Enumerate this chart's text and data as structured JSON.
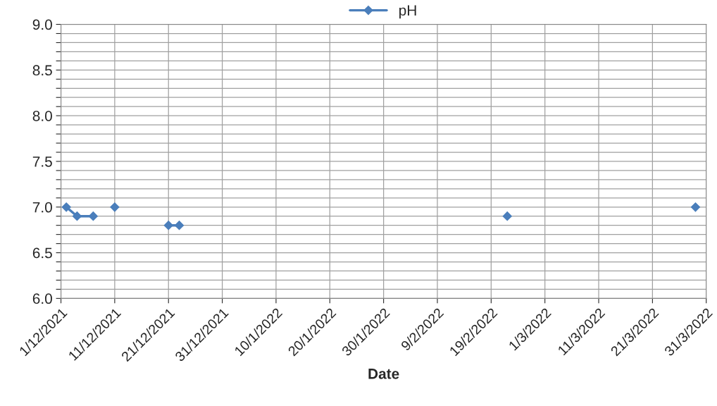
{
  "chart_data": {
    "type": "line",
    "xlabel": "Date",
    "x": [
      "2021-12-02",
      "2021-12-04",
      "2021-12-07",
      "2021-12-09",
      "2021-12-11",
      "2021-12-16",
      "2021-12-21",
      "2021-12-23",
      "2022-01-20",
      "2022-02-22",
      "2022-03-10",
      "2022-03-29"
    ],
    "series": [
      {
        "name": "pH",
        "color": "#4a7ebb",
        "values": [
          7.0,
          6.9,
          6.9,
          null,
          7.0,
          null,
          6.8,
          6.8,
          null,
          6.9,
          null,
          7.0
        ]
      }
    ],
    "xlim": [
      "2021-12-01",
      "2022-03-31"
    ],
    "xticks": [
      {
        "value": "2021-12-01",
        "label": "1/12/2021"
      },
      {
        "value": "2021-12-11",
        "label": "11/12/2021"
      },
      {
        "value": "2021-12-21",
        "label": "21/12/2021"
      },
      {
        "value": "2021-12-31",
        "label": "31/12/2021"
      },
      {
        "value": "2022-01-10",
        "label": "10/1/2022"
      },
      {
        "value": "2022-01-20",
        "label": "20/1/2022"
      },
      {
        "value": "2022-01-30",
        "label": "30/1/2022"
      },
      {
        "value": "2022-02-09",
        "label": "9/2/2022"
      },
      {
        "value": "2022-02-19",
        "label": "19/2/2022"
      },
      {
        "value": "2022-03-01",
        "label": "1/3/2022"
      },
      {
        "value": "2022-03-11",
        "label": "11/3/2022"
      },
      {
        "value": "2022-03-21",
        "label": "21/3/2022"
      },
      {
        "value": "2022-03-31",
        "label": "31/3/2022"
      }
    ],
    "ylim": [
      6.0,
      9.0
    ],
    "yticks": [
      {
        "value": 6.0,
        "label": "6.0"
      },
      {
        "value": 6.1,
        "label": null
      },
      {
        "value": 6.2,
        "label": null
      },
      {
        "value": 6.3,
        "label": null
      },
      {
        "value": 6.4,
        "label": null
      },
      {
        "value": 6.5,
        "label": "6.5"
      },
      {
        "value": 6.6,
        "label": null
      },
      {
        "value": 6.7,
        "label": null
      },
      {
        "value": 6.8,
        "label": null
      },
      {
        "value": 6.9,
        "label": null
      },
      {
        "value": 7.0,
        "label": "7.0"
      },
      {
        "value": 7.1,
        "label": null
      },
      {
        "value": 7.2,
        "label": null
      },
      {
        "value": 7.3,
        "label": null
      },
      {
        "value": 7.4,
        "label": null
      },
      {
        "value": 7.5,
        "label": "7.5"
      },
      {
        "value": 7.6,
        "label": null
      },
      {
        "value": 7.7,
        "label": null
      },
      {
        "value": 7.8,
        "label": null
      },
      {
        "value": 7.9,
        "label": null
      },
      {
        "value": 8.0,
        "label": "8.0"
      },
      {
        "value": 8.1,
        "label": null
      },
      {
        "value": 8.2,
        "label": null
      },
      {
        "value": 8.3,
        "label": null
      },
      {
        "value": 8.4,
        "label": null
      },
      {
        "value": 8.5,
        "label": "8.5"
      },
      {
        "value": 8.6,
        "label": null
      },
      {
        "value": 8.7,
        "label": null
      },
      {
        "value": 8.8,
        "label": null
      },
      {
        "value": 8.9,
        "label": null
      },
      {
        "value": 9.0,
        "label": "9.0"
      }
    ],
    "grid": true,
    "legend": "top",
    "marker": "diamond",
    "line_style": "solid"
  }
}
